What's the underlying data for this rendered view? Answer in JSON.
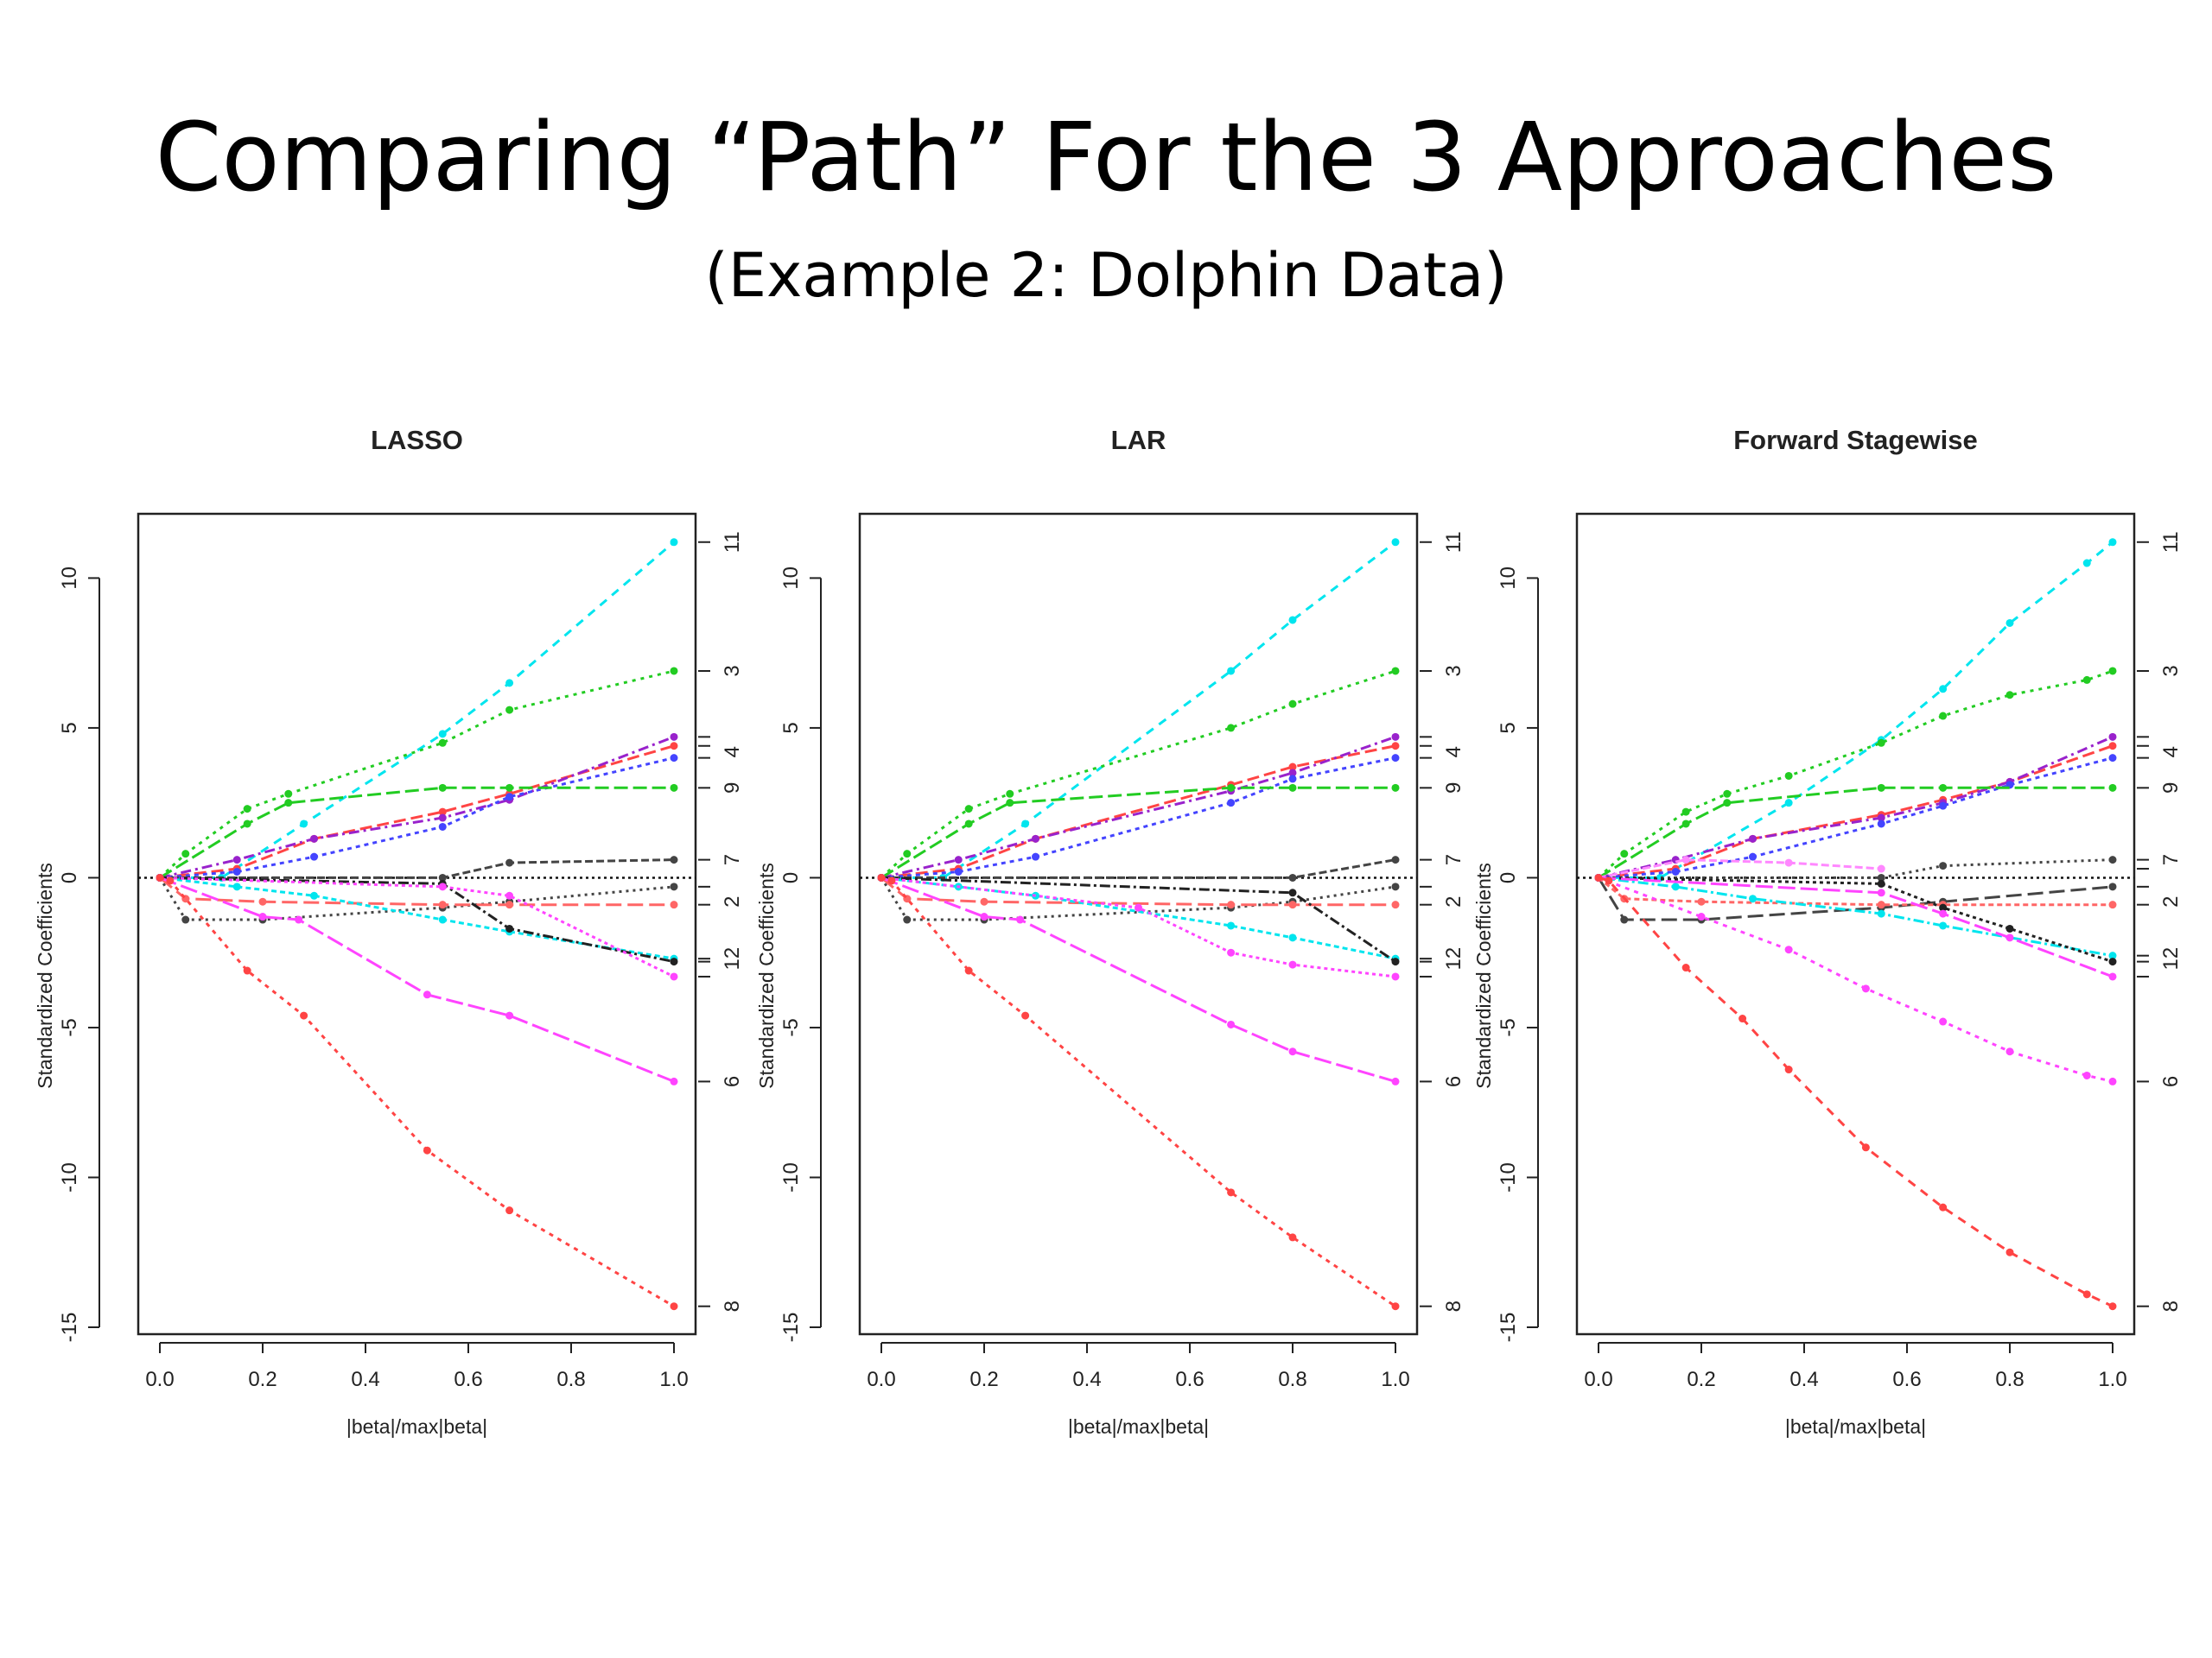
{
  "slide": {
    "title": "Comparing “Path” For the 3 Approaches",
    "subtitle": "(Example 2: Dolphin Data)"
  },
  "chart_data": [
    {
      "type": "line",
      "title": "LASSO",
      "xlabel": "|beta|/max|beta|",
      "ylabel": "Standardized Coefficients",
      "xlim": [
        0,
        1
      ],
      "ylim": [
        -15,
        12
      ],
      "xticks": [
        "0.0",
        "0.2",
        "0.4",
        "0.6",
        "0.8",
        "1.0"
      ],
      "yticks": [
        "-15",
        "-10",
        "-5",
        "0",
        "5",
        "10"
      ],
      "right_axis_labels": [
        "11",
        "3",
        "4",
        "9",
        "7",
        "2",
        "12",
        "6",
        "8"
      ],
      "series": [
        {
          "color": "#00e5ee",
          "x": [
            0,
            0.12,
            0.28,
            0.55,
            0.68,
            1.0
          ],
          "y": [
            0,
            0,
            1.8,
            4.8,
            6.5,
            11.2
          ]
        },
        {
          "color": "#22cc22",
          "x": [
            0,
            0.05,
            0.17,
            0.25,
            0.55,
            0.68,
            1.0
          ],
          "y": [
            0,
            0.8,
            2.3,
            2.8,
            4.5,
            5.6,
            6.9
          ]
        },
        {
          "color": "#ff4444",
          "x": [
            0,
            0.15,
            0.3,
            0.55,
            0.68,
            1.0
          ],
          "y": [
            0,
            0.3,
            1.3,
            2.2,
            2.8,
            4.4
          ]
        },
        {
          "color": "#9922cc",
          "x": [
            0,
            0.15,
            0.3,
            0.55,
            0.68,
            1.0
          ],
          "y": [
            0,
            0.6,
            1.3,
            2.0,
            2.6,
            4.7
          ]
        },
        {
          "color": "#4444ff",
          "x": [
            0,
            0.15,
            0.3,
            0.55,
            0.68,
            1.0
          ],
          "y": [
            0,
            0.2,
            0.7,
            1.7,
            2.7,
            4.0
          ]
        },
        {
          "color": "#22cc22",
          "x": [
            0,
            0.17,
            0.25,
            0.55,
            0.68,
            1.0
          ],
          "y": [
            0,
            1.8,
            2.5,
            3.0,
            3.0,
            3.0
          ]
        },
        {
          "color": "#444444",
          "x": [
            0,
            0.55,
            0.68,
            1.0
          ],
          "y": [
            0,
            0,
            0.5,
            0.6
          ]
        },
        {
          "color": "#444444",
          "x": [
            0,
            0.05,
            0.2,
            0.55,
            0.68,
            1.0
          ],
          "y": [
            0,
            -1.4,
            -1.4,
            -1.0,
            -0.8,
            -0.3
          ]
        },
        {
          "color": "#ff6666",
          "x": [
            0,
            0.05,
            0.2,
            0.55,
            0.68,
            1.0
          ],
          "y": [
            0,
            -0.7,
            -0.8,
            -0.9,
            -0.9,
            -0.9
          ]
        },
        {
          "color": "#00e5ee",
          "x": [
            0,
            0.15,
            0.3,
            0.55,
            0.68,
            1.0
          ],
          "y": [
            0,
            -0.3,
            -0.6,
            -1.4,
            -1.8,
            -2.7
          ]
        },
        {
          "color": "#222222",
          "x": [
            0,
            0.55,
            0.68,
            1.0
          ],
          "y": [
            0,
            -0.2,
            -1.7,
            -2.8
          ]
        },
        {
          "color": "#ff44ff",
          "x": [
            0,
            0.55,
            0.68,
            1.0
          ],
          "y": [
            0,
            -0.3,
            -0.6,
            -3.3
          ]
        },
        {
          "color": "#ff44ff",
          "x": [
            0,
            0.2,
            0.27,
            0.52,
            0.68,
            1.0
          ],
          "y": [
            0,
            -1.3,
            -1.4,
            -3.9,
            -4.6,
            -6.8
          ]
        },
        {
          "color": "#ff4444",
          "x": [
            0,
            0.02,
            0.17,
            0.28,
            0.52,
            0.68,
            1.0
          ],
          "y": [
            0,
            -0.1,
            -3.1,
            -4.6,
            -9.1,
            -11.1,
            -14.3
          ]
        }
      ]
    },
    {
      "type": "line",
      "title": "LAR",
      "xlabel": "|beta|/max|beta|",
      "ylabel": "Standardized Coefficients",
      "xlim": [
        0,
        1
      ],
      "ylim": [
        -15,
        12
      ],
      "xticks": [
        "0.0",
        "0.2",
        "0.4",
        "0.6",
        "0.8",
        "1.0"
      ],
      "yticks": [
        "-15",
        "-10",
        "-5",
        "0",
        "5",
        "10"
      ],
      "right_axis_labels": [
        "11",
        "3",
        "4",
        "9",
        "7",
        "2",
        "12",
        "6",
        "8"
      ],
      "series": [
        {
          "color": "#00e5ee",
          "x": [
            0,
            0.12,
            0.28,
            0.68,
            0.8,
            1.0
          ],
          "y": [
            0,
            0,
            1.8,
            6.9,
            8.6,
            11.2
          ]
        },
        {
          "color": "#22cc22",
          "x": [
            0,
            0.05,
            0.17,
            0.25,
            0.68,
            0.8,
            1.0
          ],
          "y": [
            0,
            0.8,
            2.3,
            2.8,
            5.0,
            5.8,
            6.9
          ]
        },
        {
          "color": "#ff4444",
          "x": [
            0,
            0.15,
            0.3,
            0.68,
            0.8,
            1.0
          ],
          "y": [
            0,
            0.3,
            1.3,
            3.1,
            3.7,
            4.4
          ]
        },
        {
          "color": "#9922cc",
          "x": [
            0,
            0.15,
            0.3,
            0.68,
            0.8,
            1.0
          ],
          "y": [
            0,
            0.6,
            1.3,
            2.9,
            3.5,
            4.7
          ]
        },
        {
          "color": "#4444ff",
          "x": [
            0,
            0.15,
            0.3,
            0.68,
            0.8,
            1.0
          ],
          "y": [
            0,
            0.2,
            0.7,
            2.5,
            3.3,
            4.0
          ]
        },
        {
          "color": "#22cc22",
          "x": [
            0,
            0.17,
            0.25,
            0.68,
            0.8,
            1.0
          ],
          "y": [
            0,
            1.8,
            2.5,
            3.0,
            3.0,
            3.0
          ]
        },
        {
          "color": "#444444",
          "x": [
            0,
            0.8,
            1.0
          ],
          "y": [
            0,
            0,
            0.6
          ]
        },
        {
          "color": "#444444",
          "x": [
            0,
            0.05,
            0.2,
            0.68,
            0.8,
            1.0
          ],
          "y": [
            0,
            -1.4,
            -1.4,
            -1.0,
            -0.8,
            -0.3
          ]
        },
        {
          "color": "#ff6666",
          "x": [
            0,
            0.05,
            0.2,
            0.68,
            0.8,
            1.0
          ],
          "y": [
            0,
            -0.7,
            -0.8,
            -0.9,
            -0.9,
            -0.9
          ]
        },
        {
          "color": "#00e5ee",
          "x": [
            0,
            0.15,
            0.3,
            0.68,
            0.8,
            1.0
          ],
          "y": [
            0,
            -0.3,
            -0.6,
            -1.6,
            -2.0,
            -2.7
          ]
        },
        {
          "color": "#222222",
          "x": [
            0,
            0.8,
            1.0
          ],
          "y": [
            0,
            -0.5,
            -2.8
          ]
        },
        {
          "color": "#ff44ff",
          "x": [
            0,
            0.5,
            0.68,
            0.8,
            1.0
          ],
          "y": [
            0,
            -1.0,
            -2.5,
            -2.9,
            -3.3
          ]
        },
        {
          "color": "#ff44ff",
          "x": [
            0,
            0.2,
            0.27,
            0.68,
            0.8,
            1.0
          ],
          "y": [
            0,
            -1.3,
            -1.4,
            -4.9,
            -5.8,
            -6.8
          ]
        },
        {
          "color": "#ff4444",
          "x": [
            0,
            0.02,
            0.17,
            0.28,
            0.68,
            0.8,
            1.0
          ],
          "y": [
            0,
            -0.1,
            -3.1,
            -4.6,
            -10.5,
            -12.0,
            -14.3
          ]
        }
      ]
    },
    {
      "type": "line",
      "title": "Forward Stagewise",
      "xlabel": "|beta|/max|beta|",
      "ylabel": "Standardized Coefficients",
      "xlim": [
        0,
        1
      ],
      "ylim": [
        -15,
        12
      ],
      "xticks": [
        "0.0",
        "0.2",
        "0.4",
        "0.6",
        "0.8",
        "1.0"
      ],
      "yticks": [
        "-15",
        "-10",
        "-5",
        "0",
        "5",
        "10"
      ],
      "right_axis_labels": [
        "11",
        "3",
        "4",
        "9",
        "7",
        "2",
        "12",
        "6",
        "8"
      ],
      "series": [
        {
          "color": "#00e5ee",
          "x": [
            0,
            0.12,
            0.37,
            0.55,
            0.67,
            0.8,
            0.95,
            1.0
          ],
          "y": [
            0,
            0,
            2.5,
            4.6,
            6.3,
            8.5,
            10.5,
            11.2
          ]
        },
        {
          "color": "#22cc22",
          "x": [
            0,
            0.05,
            0.17,
            0.25,
            0.37,
            0.55,
            0.67,
            0.8,
            0.95,
            1.0
          ],
          "y": [
            0,
            0.8,
            2.2,
            2.8,
            3.4,
            4.5,
            5.4,
            6.1,
            6.6,
            6.9
          ]
        },
        {
          "color": "#ff4444",
          "x": [
            0,
            0.15,
            0.3,
            0.55,
            0.67,
            0.8,
            1.0
          ],
          "y": [
            0,
            0.3,
            1.3,
            2.1,
            2.6,
            3.2,
            4.4
          ]
        },
        {
          "color": "#9922cc",
          "x": [
            0,
            0.15,
            0.3,
            0.55,
            0.67,
            0.8,
            1.0
          ],
          "y": [
            0,
            0.6,
            1.3,
            2.0,
            2.5,
            3.2,
            4.7
          ]
        },
        {
          "color": "#4444ff",
          "x": [
            0,
            0.15,
            0.3,
            0.55,
            0.67,
            0.8,
            1.0
          ],
          "y": [
            0,
            0.2,
            0.7,
            1.8,
            2.4,
            3.1,
            4.0
          ]
        },
        {
          "color": "#22cc22",
          "x": [
            0,
            0.17,
            0.25,
            0.55,
            0.67,
            1.0
          ],
          "y": [
            0,
            1.8,
            2.5,
            3.0,
            3.0,
            3.0
          ]
        },
        {
          "color": "#ff88ff",
          "x": [
            0,
            0.17,
            0.37,
            0.55
          ],
          "y": [
            0,
            0.6,
            0.5,
            0.3
          ]
        },
        {
          "color": "#444444",
          "x": [
            0,
            0.55,
            0.67,
            1.0
          ],
          "y": [
            0,
            0,
            0.4,
            0.6
          ]
        },
        {
          "color": "#444444",
          "x": [
            0,
            0.05,
            0.2,
            0.55,
            0.67,
            1.0
          ],
          "y": [
            0,
            -1.4,
            -1.4,
            -1.0,
            -0.8,
            -0.3
          ]
        },
        {
          "color": "#ff6666",
          "x": [
            0,
            0.05,
            0.2,
            0.55,
            0.67,
            1.0
          ],
          "y": [
            0,
            -0.7,
            -0.8,
            -0.9,
            -0.9,
            -0.9
          ]
        },
        {
          "color": "#00e5ee",
          "x": [
            0,
            0.15,
            0.3,
            0.55,
            0.67,
            1.0
          ],
          "y": [
            0,
            -0.3,
            -0.7,
            -1.2,
            -1.6,
            -2.6
          ]
        },
        {
          "color": "#222222",
          "x": [
            0,
            0.55,
            0.67,
            0.8,
            1.0
          ],
          "y": [
            0,
            -0.2,
            -1.0,
            -1.7,
            -2.8
          ]
        },
        {
          "color": "#ff44ff",
          "x": [
            0,
            0.55,
            0.67,
            0.8,
            1.0
          ],
          "y": [
            0,
            -0.5,
            -1.2,
            -2.0,
            -3.3
          ]
        },
        {
          "color": "#ff44ff",
          "x": [
            0,
            0.2,
            0.37,
            0.52,
            0.67,
            0.8,
            0.95,
            1.0
          ],
          "y": [
            0,
            -1.3,
            -2.4,
            -3.7,
            -4.8,
            -5.8,
            -6.6,
            -6.8
          ]
        },
        {
          "color": "#ff4444",
          "x": [
            0,
            0.02,
            0.17,
            0.28,
            0.37,
            0.52,
            0.67,
            0.8,
            0.95,
            1.0
          ],
          "y": [
            0,
            -0.1,
            -3.0,
            -4.7,
            -6.4,
            -9.0,
            -11.0,
            -12.5,
            -13.9,
            -14.3
          ]
        }
      ]
    }
  ]
}
